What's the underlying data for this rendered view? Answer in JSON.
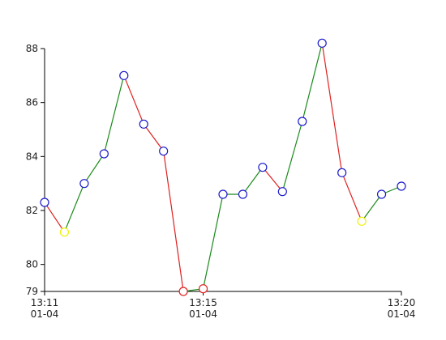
{
  "chart_data": {
    "type": "line",
    "title": "",
    "xlabel": "",
    "ylabel": "",
    "ylim": [
      79,
      88
    ],
    "x_ticks": [
      {
        "t": 0,
        "time": "13:11",
        "date": "01-04"
      },
      {
        "t": 4,
        "time": "13:15",
        "date": "01-04"
      },
      {
        "t": 9,
        "time": "13:20",
        "date": "01-04"
      }
    ],
    "y_ticks": [
      79,
      80,
      82,
      84,
      86,
      88
    ],
    "x": [
      0,
      0.5,
      1,
      1.5,
      2,
      2.5,
      3,
      3.5,
      4,
      4.5,
      5,
      5.5,
      6,
      6.5,
      7,
      7.5,
      8,
      8.5,
      9
    ],
    "x_units": "minutes after 13:11 on 01-04",
    "values": [
      82.3,
      81.2,
      83.0,
      84.1,
      87.0,
      85.2,
      84.2,
      79.0,
      79.1,
      82.6,
      82.6,
      83.6,
      82.7,
      85.3,
      88.2,
      83.4,
      81.6,
      82.6,
      82.9
    ],
    "marker_colors": [
      "blue",
      "yellow",
      "blue",
      "blue",
      "blue",
      "blue",
      "blue",
      "red",
      "red",
      "blue",
      "blue",
      "blue",
      "blue",
      "blue",
      "blue",
      "blue",
      "yellow",
      "blue",
      "blue"
    ],
    "colors": {
      "rise": "#1a8a1a",
      "fall": "#e02020",
      "blue": "#1a1acc",
      "red": "#e02020",
      "yellow": "#f0f000"
    },
    "grid": false,
    "legend": "none"
  }
}
